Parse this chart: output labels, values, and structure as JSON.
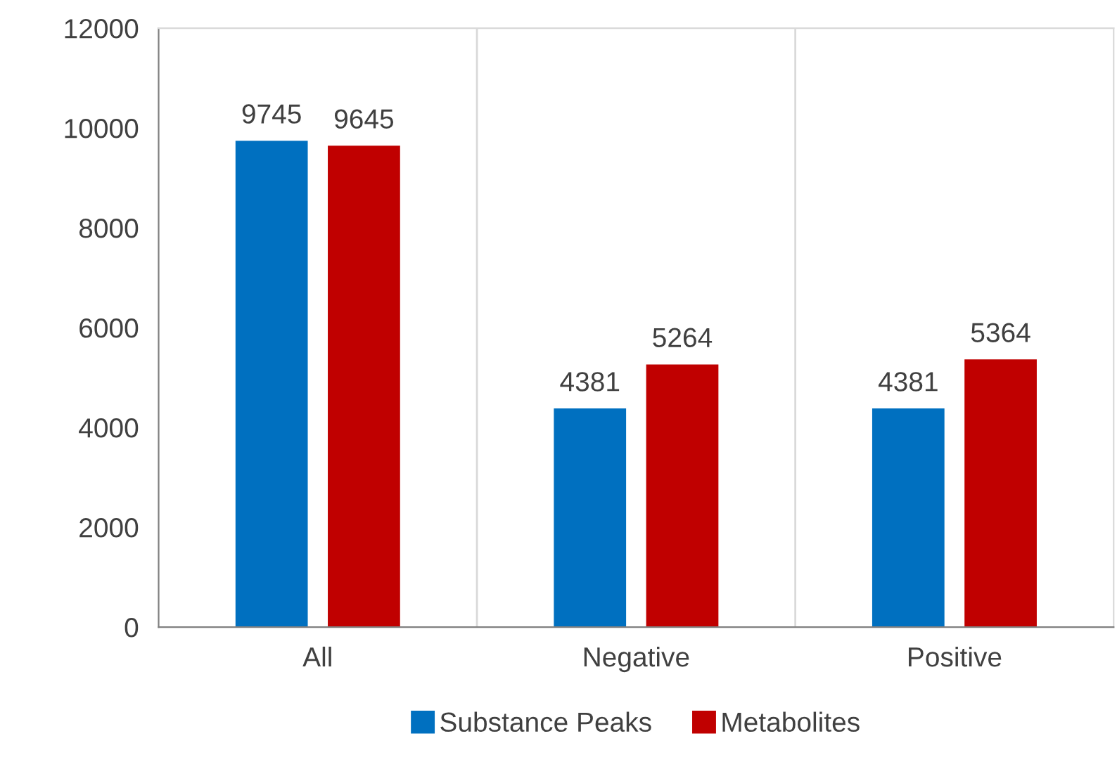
{
  "chart_data": {
    "type": "bar",
    "categories": [
      "All",
      "Negative",
      "Positive"
    ],
    "series": [
      {
        "name": "Substance Peaks",
        "color": "#0070c0",
        "values": [
          9745,
          4381,
          4381
        ]
      },
      {
        "name": "Metabolites",
        "color": "#c00000",
        "values": [
          9645,
          5264,
          5364
        ]
      }
    ],
    "ylim": [
      0,
      12000
    ],
    "yticks": [
      0,
      2000,
      4000,
      6000,
      8000,
      10000,
      12000
    ],
    "grid": "x",
    "legend": "bottom",
    "data_labels": true
  }
}
